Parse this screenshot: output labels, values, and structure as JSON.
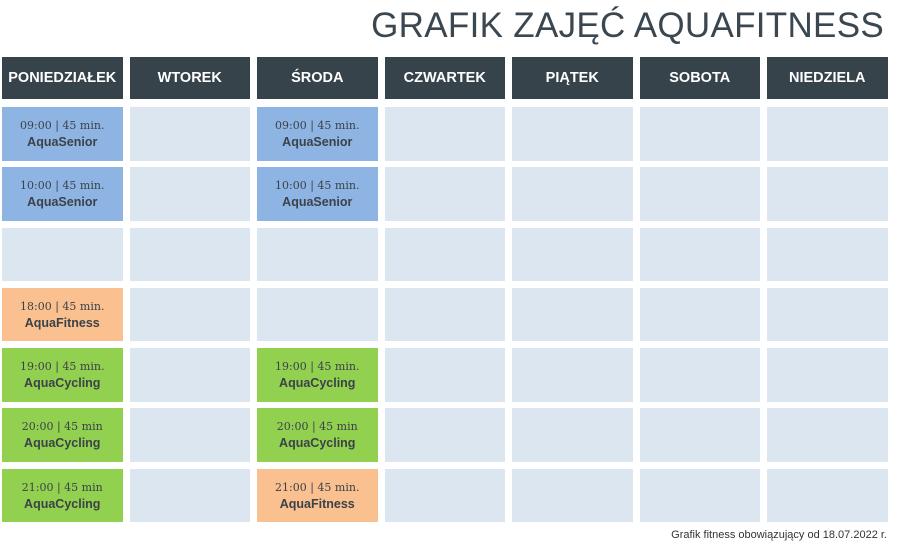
{
  "title": "GRAFIK ZAJĘĆ AQUAFITNESS",
  "days": [
    "PONIEDZIAŁEK",
    "WTOREK",
    "ŚRODA",
    "CZWARTEK",
    "PIĄTEK",
    "SOBOTA",
    "NIEDZIELA"
  ],
  "colors": {
    "header": "#37434b",
    "empty": "#dce6f1",
    "AquaSenior": "#8eb4e3",
    "AquaFitness": "#fac090",
    "AquaCycling": "#92d050"
  },
  "rows": [
    [
      {
        "time": "09:00 | 45 min.",
        "name": "AquaSenior",
        "color": "blue"
      },
      null,
      {
        "time": "09:00 | 45 min.",
        "name": "AquaSenior",
        "color": "blue"
      },
      null,
      null,
      null,
      null
    ],
    [
      {
        "time": "10:00 | 45 min.",
        "name": "AquaSenior",
        "color": "blue"
      },
      null,
      {
        "time": "10:00 | 45 min.",
        "name": "AquaSenior",
        "color": "blue"
      },
      null,
      null,
      null,
      null
    ],
    [
      null,
      null,
      null,
      null,
      null,
      null,
      null
    ],
    [
      {
        "time": "18:00 | 45 min.",
        "name": "AquaFitness",
        "color": "orange"
      },
      null,
      null,
      null,
      null,
      null,
      null
    ],
    [
      {
        "time": "19:00 | 45 min.",
        "name": "AquaCycling",
        "color": "green"
      },
      null,
      {
        "time": "19:00 | 45 min.",
        "name": "AquaCycling",
        "color": "green"
      },
      null,
      null,
      null,
      null
    ],
    [
      {
        "time": "20:00 | 45 min",
        "name": "AquaCycling",
        "color": "green"
      },
      null,
      {
        "time": "20:00 | 45 min",
        "name": "AquaCycling",
        "color": "green"
      },
      null,
      null,
      null,
      null
    ],
    [
      {
        "time": "21:00 | 45 min",
        "name": "AquaCycling",
        "color": "green"
      },
      null,
      {
        "time": "21:00 | 45 min.",
        "name": "AquaFitness",
        "color": "orange"
      },
      null,
      null,
      null,
      null
    ]
  ],
  "footer": "Grafik fitness obowiązujący od 18.07.2022 r."
}
